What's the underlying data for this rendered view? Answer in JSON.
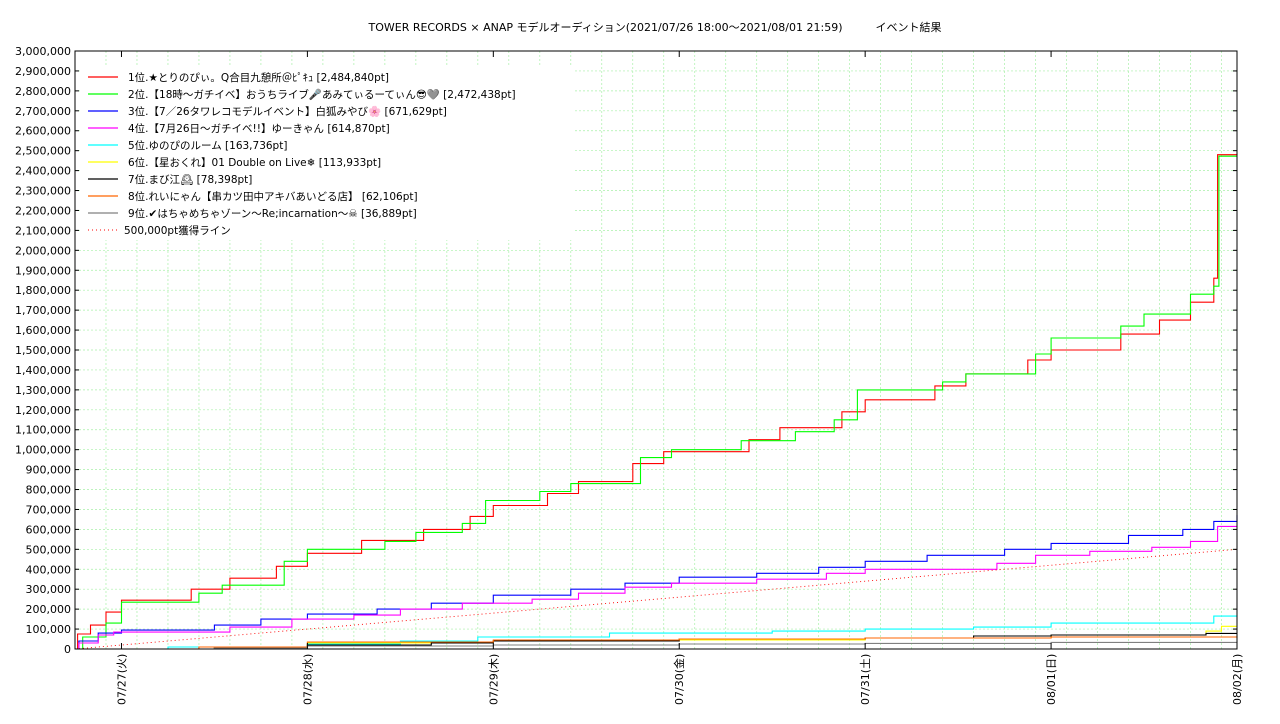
{
  "chart_data": {
    "type": "line",
    "title": "TOWER RECORDS × ANAP モデルオーディション(2021/07/26 18:00～2021/08/01 21:59)　　　イベント結果",
    "xlabel": "",
    "ylabel": "",
    "x_range": [
      "2021-07-26T18:00",
      "2021-08-02T00:00"
    ],
    "ylim": [
      0,
      3000000
    ],
    "y_ticks": [
      "0",
      "100,000",
      "200,000",
      "300,000",
      "400,000",
      "500,000",
      "600,000",
      "700,000",
      "800,000",
      "900,000",
      "1,000,000",
      "1,100,000",
      "1,200,000",
      "1,300,000",
      "1,400,000",
      "1,500,000",
      "1,600,000",
      "1,700,000",
      "1,800,000",
      "1,900,000",
      "2,000,000",
      "2,100,000",
      "2,200,000",
      "2,300,000",
      "2,400,000",
      "2,500,000",
      "2,600,000",
      "2,700,000",
      "2,800,000",
      "2,900,000",
      "3,000,000"
    ],
    "x_ticks": [
      {
        "label": "07/27(火)",
        "x": "2021-07-27T00:00"
      },
      {
        "label": "07/28(水)",
        "x": "2021-07-28T00:00"
      },
      {
        "label": "07/29(木)",
        "x": "2021-07-29T00:00"
      },
      {
        "label": "07/30(金)",
        "x": "2021-07-30T00:00"
      },
      {
        "label": "07/31(土)",
        "x": "2021-07-31T00:00"
      },
      {
        "label": "08/01(日)",
        "x": "2021-08-01T00:00"
      },
      {
        "label": "08/02(月)",
        "x": "2021-08-02T00:00"
      }
    ],
    "grid": true,
    "legend_position": "top-left",
    "series": [
      {
        "name": "1位.★とりのぴぃ。Q合目九憩所＠ﾋﾟｷｭ [2,484,840pt]",
        "color": "#ff0000",
        "step": true,
        "points": [
          [
            "2021-07-26T18:00",
            0
          ],
          [
            "2021-07-26T18:20",
            75000
          ],
          [
            "2021-07-26T20:00",
            120000
          ],
          [
            "2021-07-26T22:00",
            185000
          ],
          [
            "2021-07-27T00:00",
            245000
          ],
          [
            "2021-07-27T09:00",
            300000
          ],
          [
            "2021-07-27T14:00",
            355000
          ],
          [
            "2021-07-27T20:00",
            415000
          ],
          [
            "2021-07-28T00:00",
            480000
          ],
          [
            "2021-07-28T07:00",
            545000
          ],
          [
            "2021-07-28T15:00",
            600000
          ],
          [
            "2021-07-28T21:00",
            665000
          ],
          [
            "2021-07-29T00:00",
            720000
          ],
          [
            "2021-07-29T07:00",
            780000
          ],
          [
            "2021-07-29T11:00",
            840000
          ],
          [
            "2021-07-29T18:00",
            930000
          ],
          [
            "2021-07-29T22:00",
            990000
          ],
          [
            "2021-07-30T09:00",
            1050000
          ],
          [
            "2021-07-30T13:00",
            1110000
          ],
          [
            "2021-07-30T21:00",
            1190000
          ],
          [
            "2021-07-31T00:00",
            1250000
          ],
          [
            "2021-07-31T09:00",
            1320000
          ],
          [
            "2021-07-31T13:00",
            1380000
          ],
          [
            "2021-07-31T21:00",
            1450000
          ],
          [
            "2021-08-01T00:00",
            1500000
          ],
          [
            "2021-08-01T09:00",
            1580000
          ],
          [
            "2021-08-01T14:00",
            1650000
          ],
          [
            "2021-08-01T18:00",
            1740000
          ],
          [
            "2021-08-01T21:00",
            1860000
          ],
          [
            "2021-08-01T21:30",
            2480000
          ],
          [
            "2021-08-02T00:00",
            2484840
          ]
        ]
      },
      {
        "name": "2位.【18時〜ガチイベ】おうちライブ🎤あみてぃるーてぃん😎🩶 [2,472,438pt]",
        "color": "#00ff00",
        "step": true,
        "points": [
          [
            "2021-07-26T18:00",
            0
          ],
          [
            "2021-07-26T19:00",
            60000
          ],
          [
            "2021-07-26T22:00",
            130000
          ],
          [
            "2021-07-27T00:00",
            235000
          ],
          [
            "2021-07-27T10:00",
            280000
          ],
          [
            "2021-07-27T13:00",
            320000
          ],
          [
            "2021-07-27T21:00",
            440000
          ],
          [
            "2021-07-28T00:00",
            500000
          ],
          [
            "2021-07-28T10:00",
            540000
          ],
          [
            "2021-07-28T14:00",
            585000
          ],
          [
            "2021-07-28T20:00",
            630000
          ],
          [
            "2021-07-28T23:00",
            745000
          ],
          [
            "2021-07-29T06:00",
            790000
          ],
          [
            "2021-07-29T10:00",
            830000
          ],
          [
            "2021-07-29T19:00",
            960000
          ],
          [
            "2021-07-29T23:00",
            1000000
          ],
          [
            "2021-07-30T08:00",
            1045000
          ],
          [
            "2021-07-30T15:00",
            1090000
          ],
          [
            "2021-07-30T20:00",
            1150000
          ],
          [
            "2021-07-30T23:00",
            1300000
          ],
          [
            "2021-07-31T10:00",
            1340000
          ],
          [
            "2021-07-31T13:00",
            1380000
          ],
          [
            "2021-07-31T22:00",
            1480000
          ],
          [
            "2021-08-01T00:00",
            1560000
          ],
          [
            "2021-08-01T09:00",
            1620000
          ],
          [
            "2021-08-01T12:00",
            1680000
          ],
          [
            "2021-08-01T18:00",
            1780000
          ],
          [
            "2021-08-01T21:00",
            1820000
          ],
          [
            "2021-08-01T21:40",
            2472438
          ],
          [
            "2021-08-02T00:00",
            2472438
          ]
        ]
      },
      {
        "name": "3位.【7／26タワレコモデルイベント】白狐みやび🌸 [671,629pt]",
        "color": "#0000ff",
        "step": true,
        "points": [
          [
            "2021-07-26T18:00",
            0
          ],
          [
            "2021-07-26T18:30",
            40000
          ],
          [
            "2021-07-26T21:00",
            80000
          ],
          [
            "2021-07-27T00:00",
            95000
          ],
          [
            "2021-07-27T12:00",
            120000
          ],
          [
            "2021-07-27T18:00",
            150000
          ],
          [
            "2021-07-28T00:00",
            175000
          ],
          [
            "2021-07-28T09:00",
            200000
          ],
          [
            "2021-07-28T16:00",
            230000
          ],
          [
            "2021-07-29T00:00",
            270000
          ],
          [
            "2021-07-29T10:00",
            300000
          ],
          [
            "2021-07-29T17:00",
            330000
          ],
          [
            "2021-07-30T00:00",
            360000
          ],
          [
            "2021-07-30T10:00",
            380000
          ],
          [
            "2021-07-30T18:00",
            410000
          ],
          [
            "2021-07-31T00:00",
            440000
          ],
          [
            "2021-07-31T08:00",
            470000
          ],
          [
            "2021-07-31T18:00",
            500000
          ],
          [
            "2021-08-01T00:00",
            530000
          ],
          [
            "2021-08-01T10:00",
            570000
          ],
          [
            "2021-08-01T17:00",
            600000
          ],
          [
            "2021-08-01T21:00",
            640000
          ],
          [
            "2021-08-02T00:00",
            671629
          ]
        ]
      },
      {
        "name": "4位.【7月26日〜ガチイベ!!】ゆーきゃん [614,870pt]",
        "color": "#ff00ff",
        "step": true,
        "points": [
          [
            "2021-07-26T18:00",
            0
          ],
          [
            "2021-07-26T18:30",
            30000
          ],
          [
            "2021-07-26T21:00",
            70000
          ],
          [
            "2021-07-26T23:00",
            85000
          ],
          [
            "2021-07-27T14:00",
            110000
          ],
          [
            "2021-07-27T22:00",
            150000
          ],
          [
            "2021-07-28T06:00",
            170000
          ],
          [
            "2021-07-28T12:00",
            200000
          ],
          [
            "2021-07-28T20:00",
            230000
          ],
          [
            "2021-07-29T05:00",
            250000
          ],
          [
            "2021-07-29T11:00",
            280000
          ],
          [
            "2021-07-29T17:00",
            310000
          ],
          [
            "2021-07-29T23:00",
            330000
          ],
          [
            "2021-07-30T10:00",
            350000
          ],
          [
            "2021-07-30T19:00",
            380000
          ],
          [
            "2021-07-31T00:00",
            400000
          ],
          [
            "2021-07-31T17:00",
            430000
          ],
          [
            "2021-07-31T22:00",
            470000
          ],
          [
            "2021-08-01T05:00",
            490000
          ],
          [
            "2021-08-01T13:00",
            510000
          ],
          [
            "2021-08-01T18:00",
            540000
          ],
          [
            "2021-08-01T21:30",
            614870
          ],
          [
            "2021-08-02T00:00",
            614870
          ]
        ]
      },
      {
        "name": "5位.ゆのぴのルーム [163,736pt]",
        "color": "#00ffff",
        "step": true,
        "points": [
          [
            "2021-07-26T18:00",
            0
          ],
          [
            "2021-07-27T06:00",
            10000
          ],
          [
            "2021-07-28T00:00",
            25000
          ],
          [
            "2021-07-28T12:00",
            40000
          ],
          [
            "2021-07-28T22:00",
            60000
          ],
          [
            "2021-07-29T15:00",
            80000
          ],
          [
            "2021-07-30T12:00",
            90000
          ],
          [
            "2021-07-31T00:00",
            100000
          ],
          [
            "2021-07-31T14:00",
            110000
          ],
          [
            "2021-08-01T00:00",
            130000
          ],
          [
            "2021-08-01T21:00",
            165000
          ],
          [
            "2021-08-02T00:00",
            163736
          ]
        ]
      },
      {
        "name": "6位.【星おくれ】01 Double on Live❄ [113,933pt]",
        "color": "#ffff00",
        "step": true,
        "points": [
          [
            "2021-07-26T18:00",
            0
          ],
          [
            "2021-07-27T12:00",
            10000
          ],
          [
            "2021-07-28T00:00",
            30000
          ],
          [
            "2021-07-29T00:00",
            40000
          ],
          [
            "2021-07-30T00:00",
            45000
          ],
          [
            "2021-07-31T00:00",
            55000
          ],
          [
            "2021-08-01T00:00",
            70000
          ],
          [
            "2021-08-01T20:00",
            90000
          ],
          [
            "2021-08-01T22:00",
            113933
          ],
          [
            "2021-08-02T00:00",
            113933
          ]
        ]
      },
      {
        "name": "7位.まび江🕰 [78,398pt]",
        "color": "#000000",
        "step": true,
        "points": [
          [
            "2021-07-26T18:00",
            0
          ],
          [
            "2021-07-27T12:00",
            5000
          ],
          [
            "2021-07-28T00:00",
            20000
          ],
          [
            "2021-07-28T16:00",
            30000
          ],
          [
            "2021-07-29T00:00",
            40000
          ],
          [
            "2021-07-30T00:00",
            50000
          ],
          [
            "2021-07-31T00:00",
            55000
          ],
          [
            "2021-07-31T14:00",
            65000
          ],
          [
            "2021-08-01T00:00",
            70000
          ],
          [
            "2021-08-01T20:00",
            78398
          ],
          [
            "2021-08-02T00:00",
            78398
          ]
        ]
      },
      {
        "name": "8位.れいにゃん【串カツ田中アキバあいどる店】 [62,106pt]",
        "color": "#ff6600",
        "step": true,
        "points": [
          [
            "2021-07-26T18:00",
            0
          ],
          [
            "2021-07-27T10:00",
            10000
          ],
          [
            "2021-07-28T00:00",
            35000
          ],
          [
            "2021-07-29T00:00",
            45000
          ],
          [
            "2021-07-30T00:00",
            50000
          ],
          [
            "2021-07-31T00:00",
            55000
          ],
          [
            "2021-08-01T00:00",
            60000
          ],
          [
            "2021-08-02T00:00",
            62106
          ]
        ]
      },
      {
        "name": "9位.✔はちゃめちゃゾーン〜Re;incarnation〜☠ [36,889pt]",
        "color": "#808080",
        "step": true,
        "points": [
          [
            "2021-07-26T18:00",
            0
          ],
          [
            "2021-07-27T12:00",
            5000
          ],
          [
            "2021-07-28T00:00",
            15000
          ],
          [
            "2021-07-29T00:00",
            20000
          ],
          [
            "2021-07-30T00:00",
            25000
          ],
          [
            "2021-07-31T00:00",
            28000
          ],
          [
            "2021-08-01T00:00",
            33000
          ],
          [
            "2021-08-02T00:00",
            36889
          ]
        ]
      },
      {
        "name": "500,000pt獲得ライン",
        "color": "#ff0000",
        "dotted": true,
        "step": false,
        "points": [
          [
            "2021-07-26T18:00",
            0
          ],
          [
            "2021-08-02T00:00",
            500000
          ]
        ]
      }
    ]
  }
}
